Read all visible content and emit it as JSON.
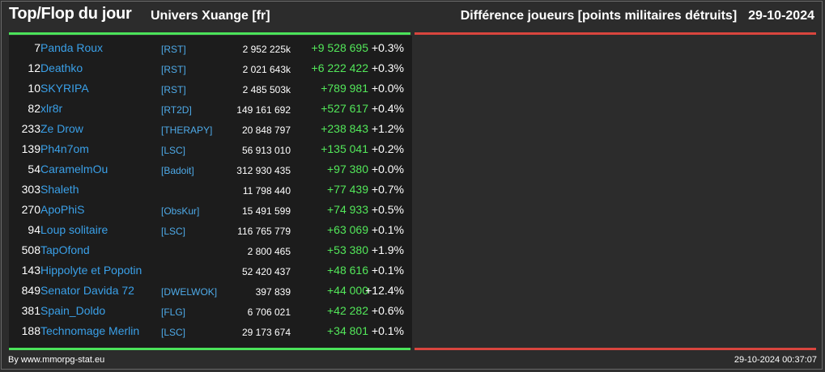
{
  "header": {
    "title": "Top/Flop du jour",
    "universe": "Univers Xuange [fr]",
    "metric": "Différence joueurs [points militaires détruits]",
    "date": "29-10-2024"
  },
  "colors": {
    "gain_line": "#4be35a",
    "loss_line": "#d9453e",
    "player_link": "#3aa0e8",
    "gain_text": "#53e85a"
  },
  "top": [
    {
      "rank": "7",
      "player": "Panda Roux",
      "alliance": "[RST]",
      "points": "2 952 225k",
      "diff": "+9 528 695",
      "pct": "+0.3%"
    },
    {
      "rank": "12",
      "player": "Deathko",
      "alliance": "[RST]",
      "points": "2 021 643k",
      "diff": "+6 222 422",
      "pct": "+0.3%"
    },
    {
      "rank": "10",
      "player": "SKYRIPA",
      "alliance": "[RST]",
      "points": "2 485 503k",
      "diff": "+789 981",
      "pct": "+0.0%"
    },
    {
      "rank": "82",
      "player": "xlr8r",
      "alliance": "[RT2D]",
      "points": "149 161 692",
      "diff": "+527 617",
      "pct": "+0.4%"
    },
    {
      "rank": "233",
      "player": "Ze Drow",
      "alliance": "[THERAPY]",
      "points": "20 848 797",
      "diff": "+238 843",
      "pct": "+1.2%"
    },
    {
      "rank": "139",
      "player": "Ph4n7om",
      "alliance": "[LSC]",
      "points": "56 913 010",
      "diff": "+135 041",
      "pct": "+0.2%"
    },
    {
      "rank": "54",
      "player": "CaramelmOu",
      "alliance": "[Badoit]",
      "points": "312 930 435",
      "diff": "+97 380",
      "pct": "+0.0%"
    },
    {
      "rank": "303",
      "player": "Shaleth",
      "alliance": "",
      "points": "11 798 440",
      "diff": "+77 439",
      "pct": "+0.7%"
    },
    {
      "rank": "270",
      "player": "ApoPhiS",
      "alliance": "[ObsKur]",
      "points": "15 491 599",
      "diff": "+74 933",
      "pct": "+0.5%"
    },
    {
      "rank": "94",
      "player": "Loup solitaire",
      "alliance": "[LSC]",
      "points": "116 765 779",
      "diff": "+63 069",
      "pct": "+0.1%"
    },
    {
      "rank": "508",
      "player": "TapOfond",
      "alliance": "",
      "points": "2 800 465",
      "diff": "+53 380",
      "pct": "+1.9%"
    },
    {
      "rank": "143",
      "player": "Hippolyte et Popotin",
      "alliance": "",
      "points": "52 420 437",
      "diff": "+48 616",
      "pct": "+0.1%"
    },
    {
      "rank": "849",
      "player": "Senator Davida 72",
      "alliance": "[DWELWOK]",
      "points": "397 839",
      "diff": "+44 000",
      "pct": "+12.4%"
    },
    {
      "rank": "381",
      "player": "Spain_Doldo",
      "alliance": "[FLG]",
      "points": "6 706 021",
      "diff": "+42 282",
      "pct": "+0.6%"
    },
    {
      "rank": "188",
      "player": "Technomage Merlin",
      "alliance": "[LSC]",
      "points": "29 173 674",
      "diff": "+34 801",
      "pct": "+0.1%"
    }
  ],
  "footer": {
    "source": "By www.mmorpg-stat.eu",
    "generated": "29-10-2024 00:37:07"
  }
}
